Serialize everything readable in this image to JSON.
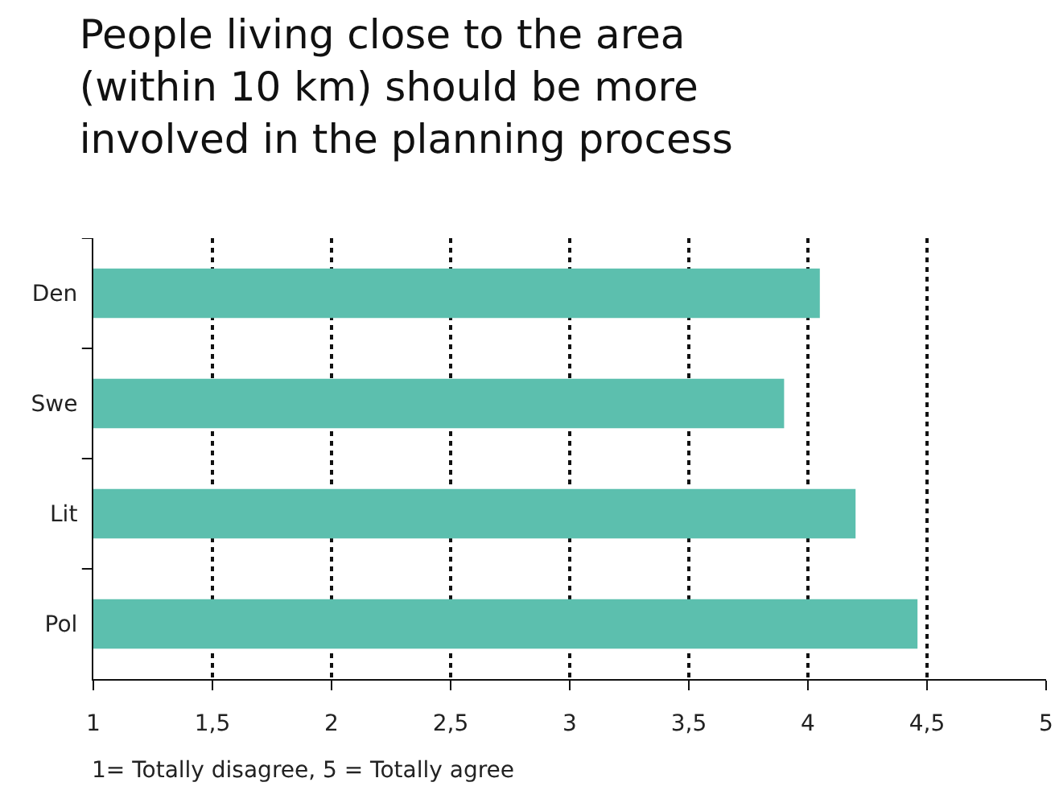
{
  "chart_data": {
    "type": "bar",
    "orientation": "horizontal",
    "title": "People living close to the area (within 10 km) should be more involved in the planning process",
    "categories": [
      "Den",
      "Swe",
      "Lit",
      "Pol"
    ],
    "values": [
      4.05,
      3.9,
      4.2,
      4.46
    ],
    "color": "#5cbfae",
    "xlim": [
      1,
      5
    ],
    "xticks": [
      1,
      {
        "value": 1.5,
        "label": "1,5"
      },
      2,
      {
        "value": 2.5,
        "label": "2,5"
      },
      3,
      {
        "value": 3.5,
        "label": "3,5"
      },
      4,
      {
        "value": 4.5,
        "label": "4,5"
      },
      5
    ],
    "grid": "x",
    "annotations": [
      "1= Totally disagree, 5 = Totally agree"
    ]
  }
}
